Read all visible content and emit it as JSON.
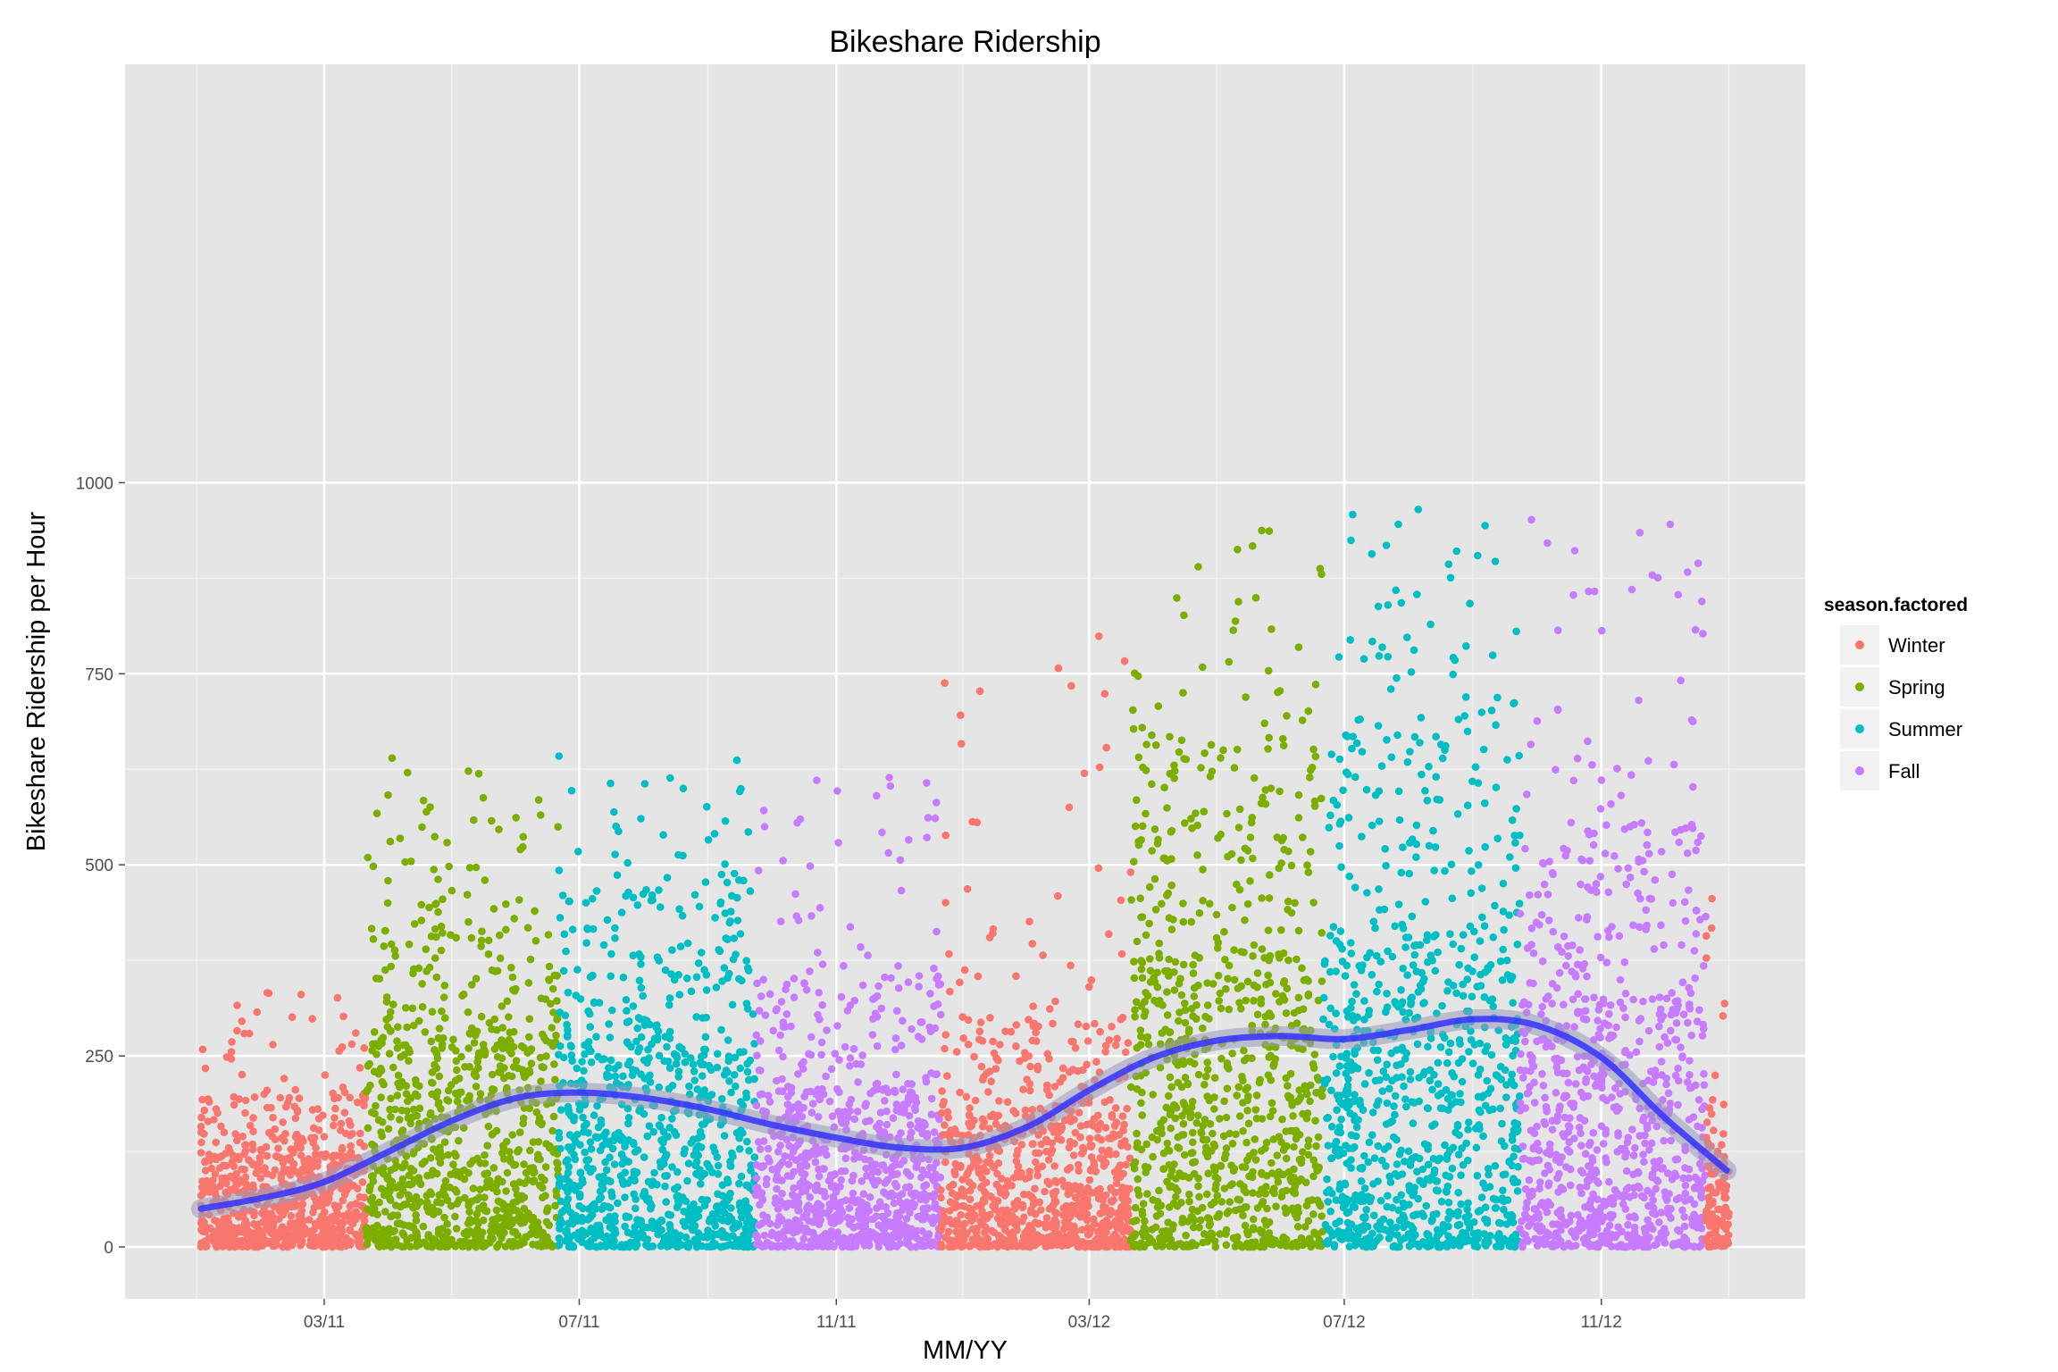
{
  "chart_data": {
    "type": "scatter",
    "title": "Bikeshare Ridership",
    "xlabel": "MM/YY",
    "ylabel": "Bikeshare Ridership per Hour",
    "xlim": [
      "2010-12-01",
      "2013-01-31"
    ],
    "ylim": [
      -50,
      1025
    ],
    "x_ticks": [
      {
        "date": "2011-03-01",
        "label": "03/11"
      },
      {
        "date": "2011-07-01",
        "label": "07/11"
      },
      {
        "date": "2011-11-01",
        "label": "11/11"
      },
      {
        "date": "2012-03-01",
        "label": "03/12"
      },
      {
        "date": "2012-07-01",
        "label": "07/12"
      },
      {
        "date": "2012-11-01",
        "label": "11/12"
      }
    ],
    "y_ticks": [
      0,
      250,
      500,
      750,
      1000
    ],
    "grid": true,
    "legend": {
      "title": "season.factored",
      "position": "right",
      "entries": [
        {
          "name": "Winter",
          "color": "#F8766D"
        },
        {
          "name": "Spring",
          "color": "#7CAE00"
        },
        {
          "name": "Summer",
          "color": "#00BFC4"
        },
        {
          "name": "Fall",
          "color": "#C77CFF"
        }
      ]
    },
    "season_periods": [
      {
        "season": "Winter",
        "start": "2011-01-01",
        "end": "2011-03-20",
        "typical_max": 200,
        "peak_max": 335
      },
      {
        "season": "Spring",
        "start": "2011-03-21",
        "end": "2011-06-20",
        "typical_max": 450,
        "peak_max": 640
      },
      {
        "season": "Summer",
        "start": "2011-06-21",
        "end": "2011-09-22",
        "typical_max": 460,
        "peak_max": 650
      },
      {
        "season": "Fall",
        "start": "2011-09-23",
        "end": "2011-12-20",
        "typical_max": 350,
        "peak_max": 625
      },
      {
        "season": "Winter",
        "start": "2011-12-21",
        "end": "2012-03-20",
        "typical_max": 300,
        "peak_max": 800
      },
      {
        "season": "Spring",
        "start": "2012-03-21",
        "end": "2012-06-20",
        "typical_max": 650,
        "peak_max": 955
      },
      {
        "season": "Summer",
        "start": "2012-06-21",
        "end": "2012-09-22",
        "typical_max": 700,
        "peak_max": 975
      },
      {
        "season": "Fall",
        "start": "2012-09-23",
        "end": "2012-12-20",
        "typical_max": 550,
        "peak_max": 965
      },
      {
        "season": "Winter",
        "start": "2012-12-21",
        "end": "2012-12-31",
        "typical_max": 200,
        "peak_max": 475
      }
    ],
    "smooth_line": {
      "color": "#3333FF",
      "points": [
        {
          "date": "2011-01-01",
          "y": 50
        },
        {
          "date": "2011-02-01",
          "y": 65
        },
        {
          "date": "2011-03-01",
          "y": 85
        },
        {
          "date": "2011-04-01",
          "y": 125
        },
        {
          "date": "2011-05-01",
          "y": 165
        },
        {
          "date": "2011-06-01",
          "y": 195
        },
        {
          "date": "2011-07-01",
          "y": 202
        },
        {
          "date": "2011-08-01",
          "y": 195
        },
        {
          "date": "2011-09-01",
          "y": 180
        },
        {
          "date": "2011-10-01",
          "y": 160
        },
        {
          "date": "2011-11-01",
          "y": 143
        },
        {
          "date": "2011-12-01",
          "y": 130
        },
        {
          "date": "2012-01-01",
          "y": 130
        },
        {
          "date": "2012-02-01",
          "y": 158
        },
        {
          "date": "2012-03-01",
          "y": 205
        },
        {
          "date": "2012-04-01",
          "y": 248
        },
        {
          "date": "2012-05-01",
          "y": 270
        },
        {
          "date": "2012-06-01",
          "y": 276
        },
        {
          "date": "2012-07-01",
          "y": 272
        },
        {
          "date": "2012-08-01",
          "y": 284
        },
        {
          "date": "2012-09-01",
          "y": 298
        },
        {
          "date": "2012-10-01",
          "y": 290
        },
        {
          "date": "2012-11-01",
          "y": 248
        },
        {
          "date": "2012-12-01",
          "y": 170
        },
        {
          "date": "2012-12-31",
          "y": 100
        }
      ]
    }
  }
}
